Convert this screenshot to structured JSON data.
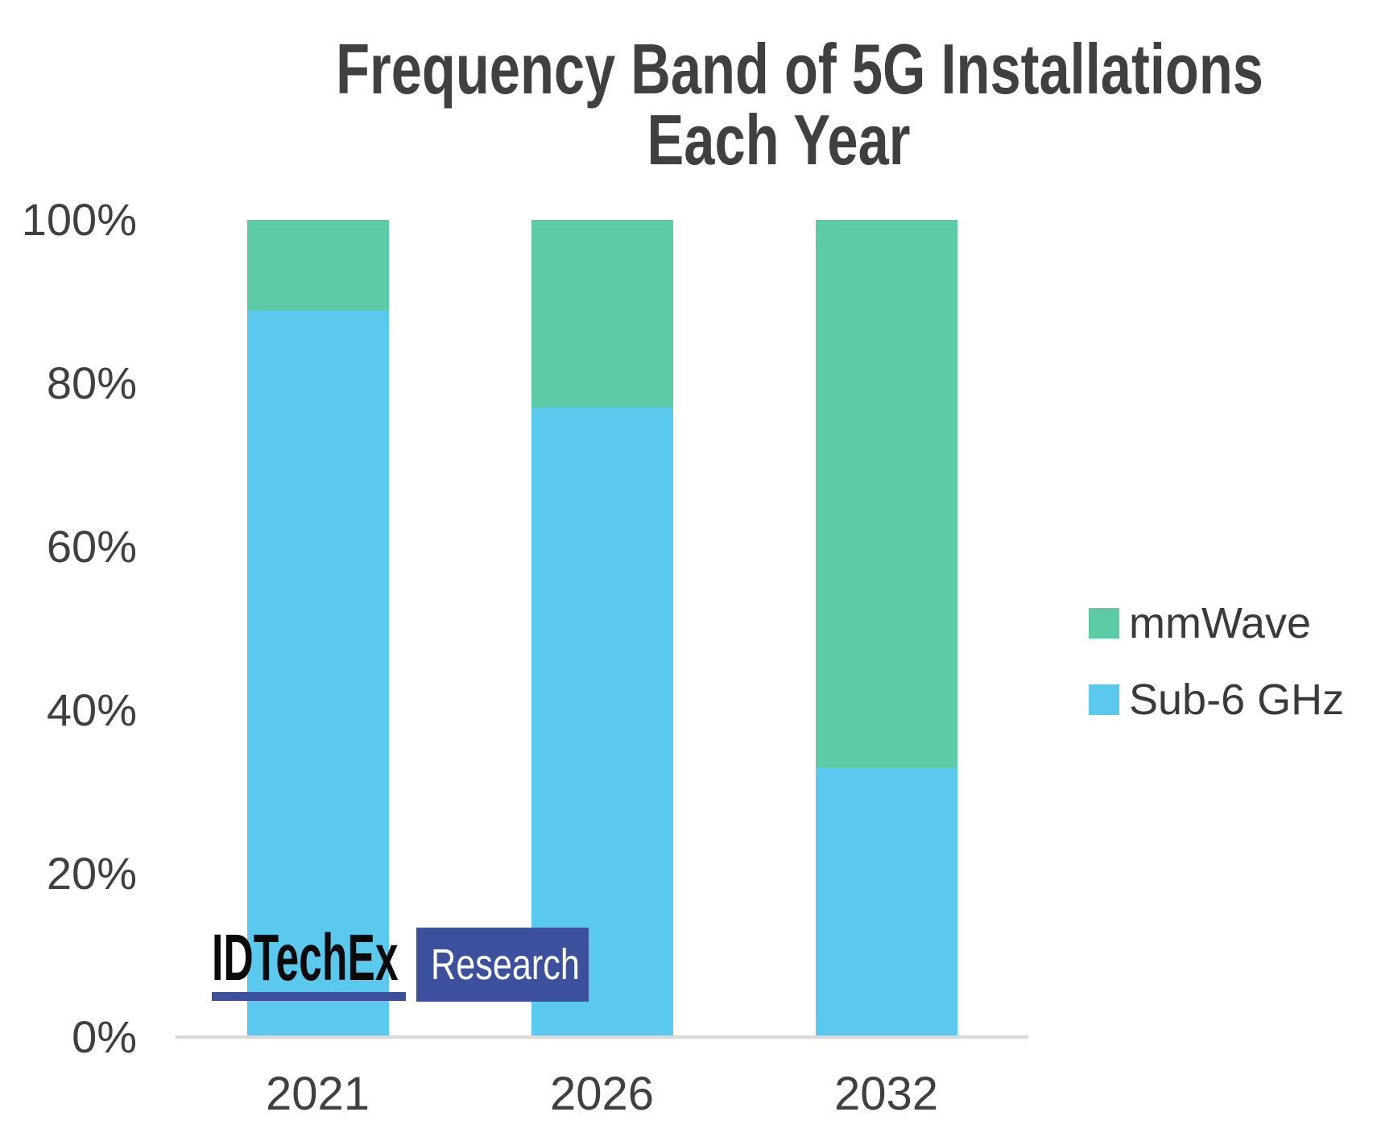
{
  "title": {
    "line1": "Frequency Band of 5G Installations",
    "line2": "Each Year"
  },
  "chart_data": {
    "type": "bar",
    "subtype": "stacked-100-percent",
    "title": "Frequency Band of 5G Installations Each Year",
    "categories": [
      "2021",
      "2026",
      "2032"
    ],
    "series": [
      {
        "name": "mmWave",
        "color": "#5dcba5",
        "values": [
          11,
          23,
          67
        ]
      },
      {
        "name": "Sub-6 GHz",
        "color": "#5bc9ee",
        "values": [
          89,
          77,
          33
        ]
      }
    ],
    "units": "percent",
    "ylim": [
      0,
      100
    ],
    "yticks": [
      "100%",
      "80%",
      "60%",
      "40%",
      "20%",
      "0%"
    ],
    "xlabel": "",
    "ylabel": "",
    "grid": false,
    "legend_position": "right"
  },
  "logo": {
    "brand": "IDTechEx",
    "suffix": "Research"
  },
  "colors": {
    "mmwave_green": "#5dcba5",
    "sub6_blue": "#5bc9ee",
    "logo_blue": "#3d509e",
    "axis_line": "#d9d9d9",
    "text": "#404040"
  }
}
